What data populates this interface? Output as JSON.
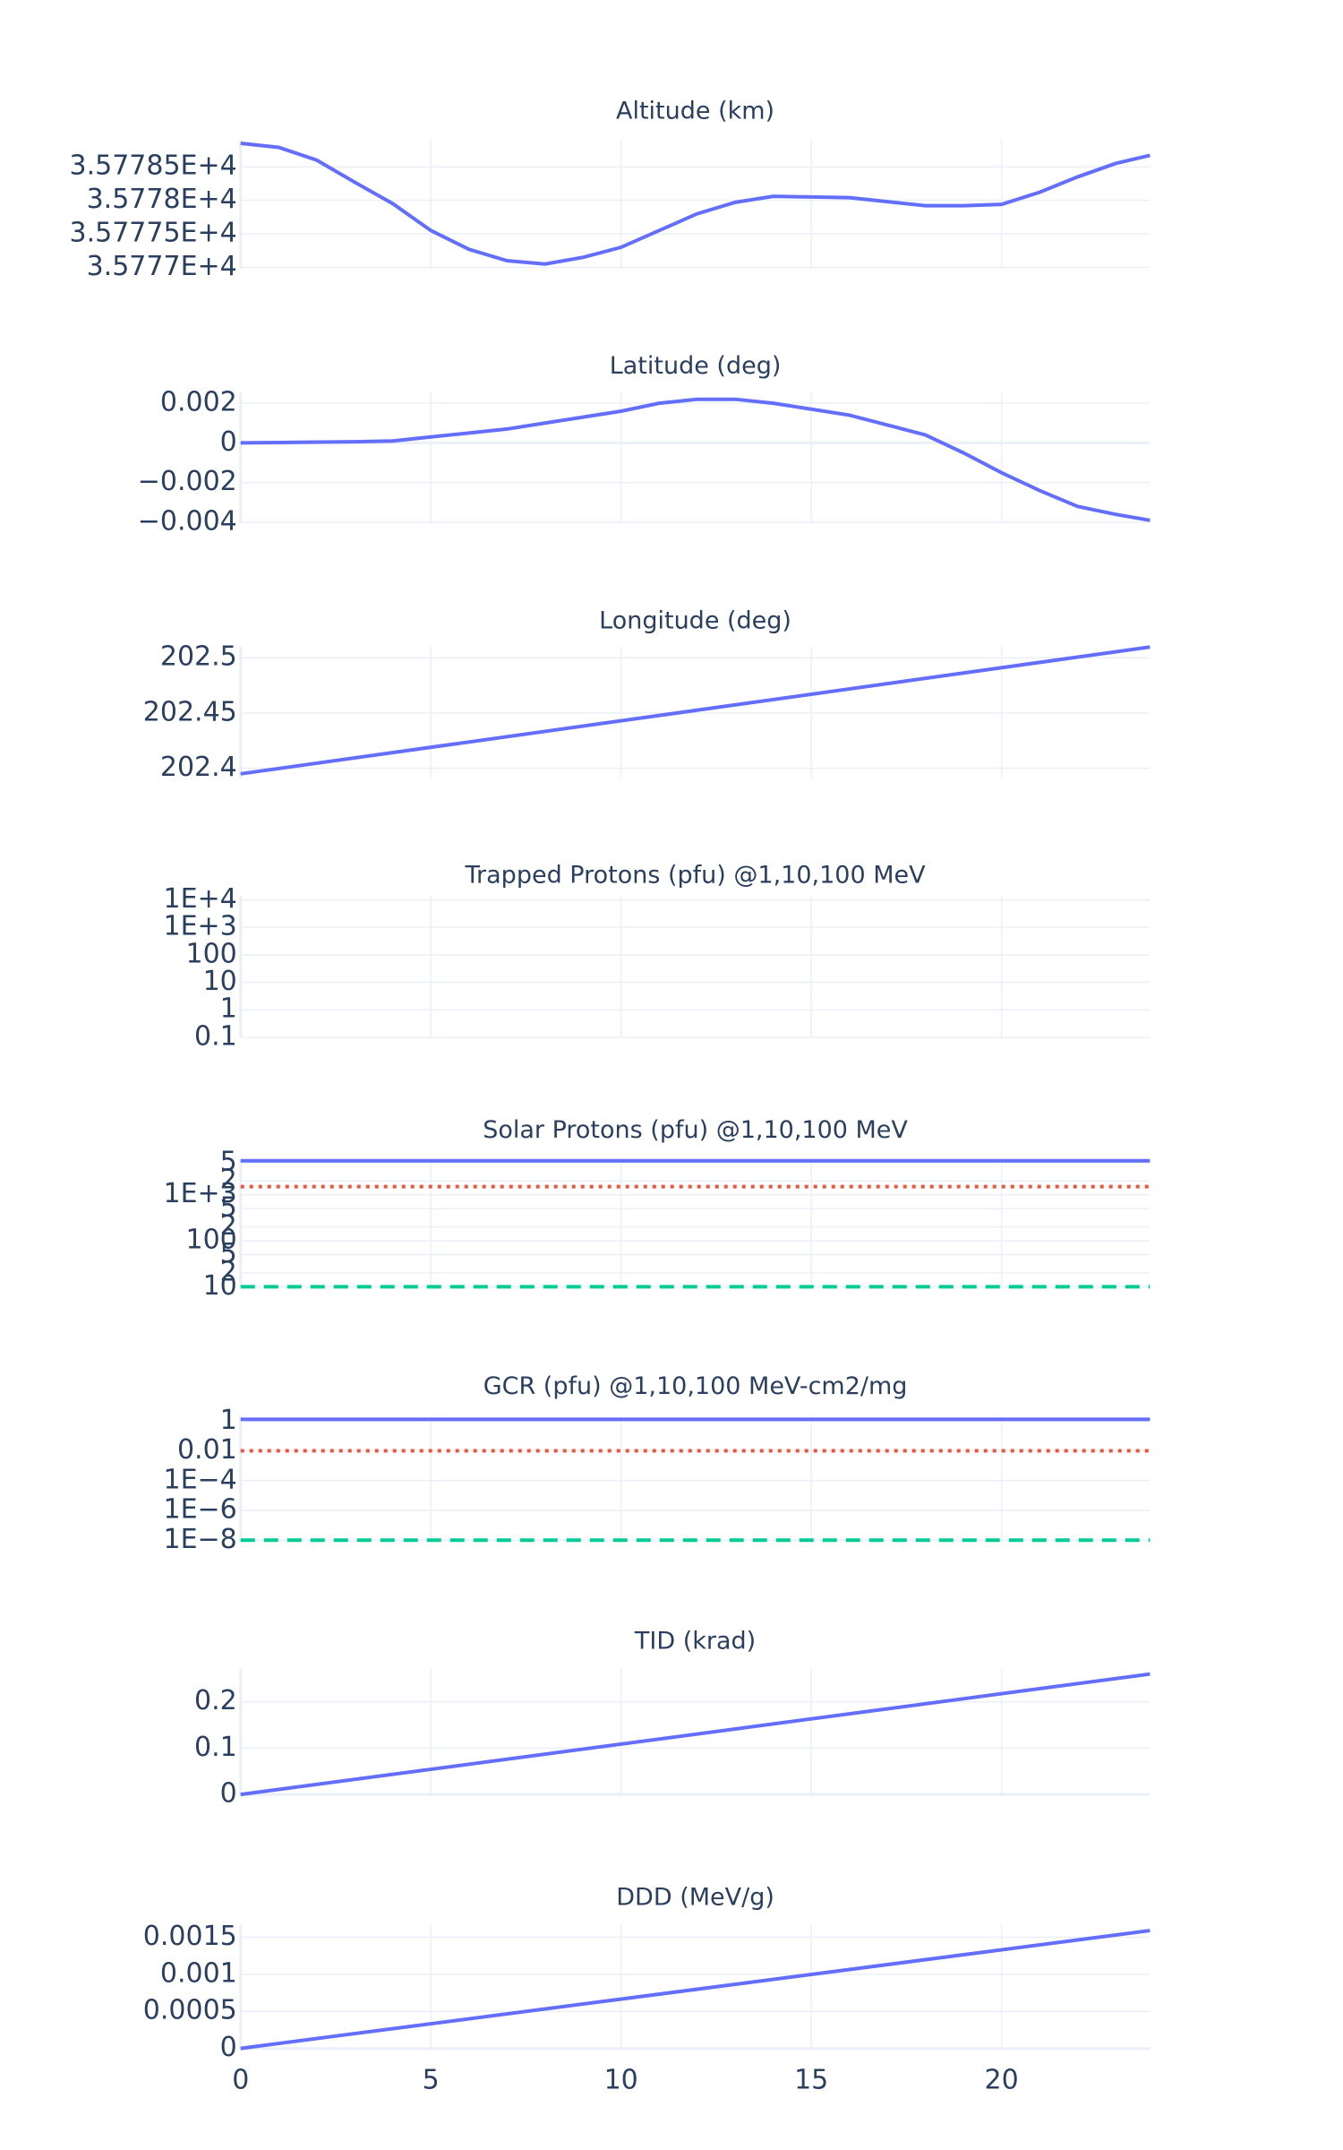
{
  "chart_data": [
    {
      "type": "line",
      "title": "Altitude (km)",
      "x": [
        0,
        1,
        2,
        3,
        4,
        5,
        6,
        7,
        8,
        9,
        10,
        11,
        12,
        13,
        14,
        15,
        16,
        17,
        18,
        19,
        20,
        21,
        22,
        23,
        23.9
      ],
      "series": [
        {
          "color": "#636efa",
          "dash": "solid",
          "values": [
            35778.85,
            35778.79,
            35778.6,
            35778.27,
            35777.95,
            35777.55,
            35777.27,
            35777.1,
            35777.05,
            35777.15,
            35777.3,
            35777.55,
            35777.8,
            35777.97,
            35778.06,
            35778.05,
            35778.04,
            35777.98,
            35777.92,
            35777.92,
            35777.94,
            35778.12,
            35778.35,
            35778.55,
            35778.67
          ]
        }
      ],
      "xlim": [
        0,
        23.9
      ],
      "xticks": [
        0,
        5,
        10,
        15,
        20
      ],
      "show_xticklabels": false,
      "ylim": [
        35776.98,
        35778.9
      ],
      "yticks": [
        {
          "value": 35777,
          "label": "3.5777E+4"
        },
        {
          "value": 35777.5,
          "label": "3.57775E+4"
        },
        {
          "value": 35778,
          "label": "3.5778E+4"
        },
        {
          "value": 35778.5,
          "label": "3.57785E+4"
        }
      ],
      "grid": true,
      "log": false
    },
    {
      "type": "line",
      "title": "Latitude (deg)",
      "x": [
        0,
        1,
        2,
        3,
        4,
        5,
        6,
        7,
        8,
        9,
        10,
        11,
        12,
        13,
        14,
        15,
        16,
        17,
        18,
        19,
        20,
        21,
        22,
        23,
        23.9
      ],
      "series": [
        {
          "color": "#636efa",
          "dash": "solid",
          "values": [
            0,
            2e-05,
            4e-05,
            6e-05,
            0.0001,
            0.0003,
            0.0005,
            0.0007,
            0.001,
            0.0013,
            0.0016,
            0.002,
            0.0022,
            0.0022,
            0.002,
            0.0017,
            0.0014,
            0.0009,
            0.0004,
            -0.0005,
            -0.0015,
            -0.0024,
            -0.0032,
            -0.0036,
            -0.0039
          ]
        }
      ],
      "xlim": [
        0,
        23.9
      ],
      "xticks": [
        0,
        5,
        10,
        15,
        20
      ],
      "show_xticklabels": false,
      "ylim": [
        -0.00406,
        0.00257
      ],
      "yticks": [
        {
          "value": -0.004,
          "label": "−0.004"
        },
        {
          "value": -0.002,
          "label": "−0.002"
        },
        0,
        0.002
      ],
      "grid": true,
      "log": false
    },
    {
      "type": "line",
      "title": "Longitude (deg)",
      "x": [
        0,
        23.9
      ],
      "series": [
        {
          "color": "#636efa",
          "dash": "solid",
          "values": [
            202.395,
            202.5097
          ]
        }
      ],
      "xlim": [
        0,
        23.9
      ],
      "xticks": [
        0,
        5,
        10,
        15,
        20
      ],
      "show_xticklabels": false,
      "ylim": [
        202.391,
        202.51
      ],
      "yticks": [
        202.4,
        202.45,
        202.5
      ],
      "grid": true,
      "log": false
    },
    {
      "type": "line",
      "title": "Trapped Protons (pfu) @1,10,100 MeV",
      "x": [],
      "series": [],
      "xlim": [
        0,
        23.9
      ],
      "xticks": [
        0,
        5,
        10,
        15,
        20
      ],
      "show_xticklabels": false,
      "ylim": [
        0.1,
        14000
      ],
      "yticks": [
        0.1,
        1,
        10,
        100,
        {
          "value": 1000,
          "label": "1E+3"
        },
        {
          "value": 10000,
          "label": "1E+4"
        }
      ],
      "grid": true,
      "log": true
    },
    {
      "type": "line",
      "title": "Solar Protons (pfu) @1,10,100 MeV",
      "x": [
        0,
        23.9
      ],
      "series": [
        {
          "color": "#636efa",
          "dash": "solid",
          "values": [
            5500,
            5500
          ]
        },
        {
          "color": "#ef553b",
          "dash": "dot",
          "values": [
            1500,
            1500
          ]
        },
        {
          "color": "#00cc96",
          "dash": "dash",
          "values": [
            10,
            10
          ]
        }
      ],
      "xlim": [
        0,
        23.9
      ],
      "xticks": [
        0,
        5,
        10,
        15,
        20
      ],
      "show_xticklabels": false,
      "ylim": [
        9.5,
        6000
      ],
      "yticks": [
        10,
        {
          "value": 20,
          "label": "2"
        },
        {
          "value": 50,
          "label": "5"
        },
        100,
        {
          "value": 200,
          "label": "2"
        },
        {
          "value": 500,
          "label": "5"
        },
        {
          "value": 1000,
          "label": "1E+3"
        },
        {
          "value": 2000,
          "label": "2"
        },
        {
          "value": 5000,
          "label": "5"
        }
      ],
      "grid": true,
      "log": true
    },
    {
      "type": "line",
      "title": "GCR (pfu) @1,10,100 MeV-cm2/mg",
      "x": [
        0,
        23.9
      ],
      "series": [
        {
          "color": "#636efa",
          "dash": "solid",
          "values": [
            1.3,
            1.3
          ]
        },
        {
          "color": "#ef553b",
          "dash": "dot",
          "values": [
            0.01,
            0.01
          ]
        },
        {
          "color": "#00cc96",
          "dash": "dash",
          "values": [
            1e-08,
            1e-08
          ]
        }
      ],
      "xlim": [
        0,
        23.9
      ],
      "xticks": [
        0,
        5,
        10,
        15,
        20
      ],
      "show_xticklabels": false,
      "ylim": [
        7e-09,
        2
      ],
      "yticks": [
        {
          "value": 1e-08,
          "label": "1E−8"
        },
        {
          "value": 1e-06,
          "label": "1E−6"
        },
        {
          "value": 0.0001,
          "label": "1E−4"
        },
        0.01,
        1
      ],
      "grid": true,
      "log": true
    },
    {
      "type": "line",
      "title": "TID (krad)",
      "x": [
        0,
        23.9
      ],
      "series": [
        {
          "color": "#636efa",
          "dash": "solid",
          "values": [
            0,
            0.26
          ]
        }
      ],
      "xlim": [
        0,
        23.9
      ],
      "xticks": [
        0,
        5,
        10,
        15,
        20
      ],
      "show_xticklabels": false,
      "ylim": [
        -0.003,
        0.272
      ],
      "yticks": [
        0,
        0.1,
        0.2
      ],
      "grid": true,
      "log": false
    },
    {
      "type": "line",
      "title": "DDD (MeV/g)",
      "x": [
        0,
        23.9
      ],
      "series": [
        {
          "color": "#636efa",
          "dash": "solid",
          "values": [
            0,
            0.00159
          ]
        }
      ],
      "xlim": [
        0,
        23.9
      ],
      "xticks": [
        0,
        5,
        10,
        15,
        20
      ],
      "show_xticklabels": true,
      "ylim": [
        -3e-05,
        0.00167
      ],
      "yticks": [
        0,
        0.0005,
        0.001,
        0.0015
      ],
      "grid": true,
      "log": false
    }
  ]
}
